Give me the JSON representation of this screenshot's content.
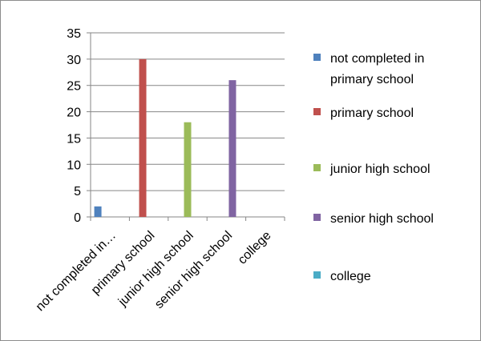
{
  "chart_data": {
    "type": "bar",
    "categories": [
      "not completed in primary school",
      "primary school",
      "junior high school",
      "senior high school",
      "college"
    ],
    "category_tick_labels": [
      "not completed in…",
      "primary school",
      "junior high school",
      "senior high school",
      "college"
    ],
    "series": [
      {
        "name": "not completed in primary school",
        "values": [
          2,
          null,
          null,
          null,
          null
        ],
        "color": "#4F81BD"
      },
      {
        "name": "primary school",
        "values": [
          null,
          30,
          null,
          null,
          null
        ],
        "color": "#C0504D"
      },
      {
        "name": "junior high school",
        "values": [
          null,
          null,
          18,
          null,
          null
        ],
        "color": "#9BBB59"
      },
      {
        "name": "senior high school",
        "values": [
          null,
          null,
          null,
          26,
          null
        ],
        "color": "#8064A2"
      },
      {
        "name": "college",
        "values": [
          null,
          null,
          null,
          null,
          0
        ],
        "color": "#4BACC6"
      }
    ],
    "legend": {
      "position": "right",
      "entries": [
        {
          "lines": [
            "not completed in",
            "primary school"
          ],
          "color": "#4F81BD"
        },
        {
          "lines": [
            "primary school"
          ],
          "color": "#C0504D"
        },
        {
          "lines": [
            "junior high school"
          ],
          "color": "#9BBB59"
        },
        {
          "lines": [
            "senior high school"
          ],
          "color": "#8064A2"
        },
        {
          "lines": [
            "college"
          ],
          "color": "#4BACC6"
        }
      ]
    },
    "y_ticks": [
      0,
      5,
      10,
      15,
      20,
      25,
      30,
      35
    ],
    "ylim": [
      0,
      35
    ],
    "grid": true,
    "title": "",
    "xlabel": "",
    "ylabel": ""
  }
}
